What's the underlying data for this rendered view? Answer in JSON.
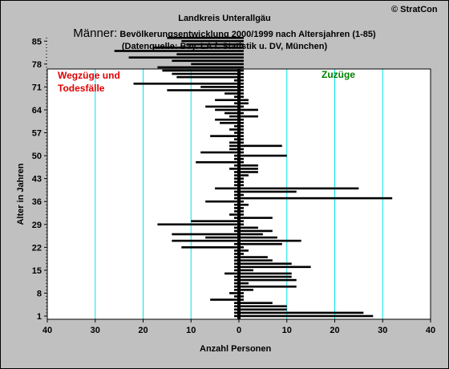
{
  "header": {
    "copyright": "© StratCon",
    "title": "Landkreis Unterallgäu",
    "subtitle_prefix": "Männer:",
    "subtitle_main": " Bevölkerungsentwicklung 2000/1999  nach Altersjahren (1-85)",
    "source": "(Datenquelle: Bay. LA f. Statistik u. DV, München)"
  },
  "chart_data": {
    "type": "bar",
    "orientation": "horizontal",
    "xlabel": "Anzahl Personen",
    "ylabel": "Alter in Jahren",
    "xlim": [
      -40,
      40
    ],
    "ylim": [
      1,
      87
    ],
    "x_ticks": [
      -40,
      -30,
      -20,
      -10,
      0,
      10,
      20,
      30,
      40
    ],
    "x_tick_labels": [
      "40",
      "30",
      "20",
      "10",
      "0",
      "10",
      "20",
      "30",
      "40"
    ],
    "y_ticks": [
      1,
      8,
      15,
      22,
      29,
      36,
      43,
      50,
      57,
      64,
      71,
      78,
      85
    ],
    "grid": "vertical",
    "annotations": {
      "left": "Wegzüge und\nTodesfälle",
      "right": "Zuzüge"
    },
    "colors": {
      "bars": "#000000",
      "grid": "#00e5e5",
      "left_annotation": "#e00000",
      "right_annotation": "#008000"
    },
    "ages": [
      1,
      2,
      3,
      4,
      5,
      6,
      7,
      8,
      9,
      10,
      11,
      12,
      13,
      14,
      15,
      16,
      17,
      18,
      19,
      20,
      21,
      22,
      23,
      24,
      25,
      26,
      27,
      28,
      29,
      30,
      31,
      32,
      33,
      34,
      35,
      36,
      37,
      38,
      39,
      40,
      41,
      42,
      43,
      44,
      45,
      46,
      47,
      48,
      49,
      50,
      51,
      52,
      53,
      54,
      55,
      56,
      57,
      58,
      59,
      60,
      61,
      62,
      63,
      64,
      65,
      66,
      67,
      68,
      69,
      70,
      71,
      72,
      73,
      74,
      75,
      76,
      77,
      78,
      79,
      80,
      81,
      82,
      83,
      84,
      85,
      86
    ],
    "series": [
      {
        "name": "Wegzüge und Todesfälle",
        "values": [
          -1,
          -1,
          -1,
          -1,
          -1,
          -6,
          -1,
          -2,
          -1,
          -1,
          -1,
          -1,
          -1,
          -3,
          -1,
          -1,
          -1,
          -1,
          -1,
          -1,
          -1,
          -12,
          -1,
          -14,
          -7,
          -14,
          -1,
          -1,
          -17,
          -10,
          -1,
          -2,
          -1,
          -1,
          -1,
          -7,
          -1,
          -1,
          -1,
          -5,
          -1,
          -1,
          -1,
          -1,
          -1,
          -2,
          -1,
          -9,
          -1,
          -1,
          -8,
          -2,
          -2,
          -2,
          -1,
          -6,
          -1,
          -2,
          -1,
          -4,
          -5,
          -2,
          -3,
          -5,
          -7,
          -1,
          -5,
          -1,
          -3,
          -15,
          -8,
          -22,
          -1,
          -13,
          -14,
          -16,
          -17,
          -10,
          -14,
          -23,
          -13,
          -26,
          -18,
          -11,
          -12,
          -15
        ]
      },
      {
        "name": "Zuzüge",
        "values": [
          28,
          26,
          10,
          10,
          7,
          1,
          1,
          1,
          3,
          12,
          2,
          12,
          11,
          11,
          3,
          15,
          11,
          7,
          6,
          1,
          2,
          1,
          9,
          13,
          8,
          5,
          7,
          4,
          1,
          1,
          7,
          1,
          1,
          1,
          2,
          1,
          32,
          1,
          12,
          25,
          1,
          1,
          1,
          2,
          4,
          4,
          4,
          1,
          1,
          10,
          1,
          1,
          9,
          1,
          1,
          1,
          1,
          1,
          1,
          1,
          1,
          4,
          1,
          4,
          1,
          2,
          2,
          1,
          1,
          1,
          1,
          1,
          1,
          1,
          1,
          1,
          1,
          1,
          1,
          1,
          1,
          1,
          1,
          1,
          1,
          1
        ]
      }
    ]
  }
}
